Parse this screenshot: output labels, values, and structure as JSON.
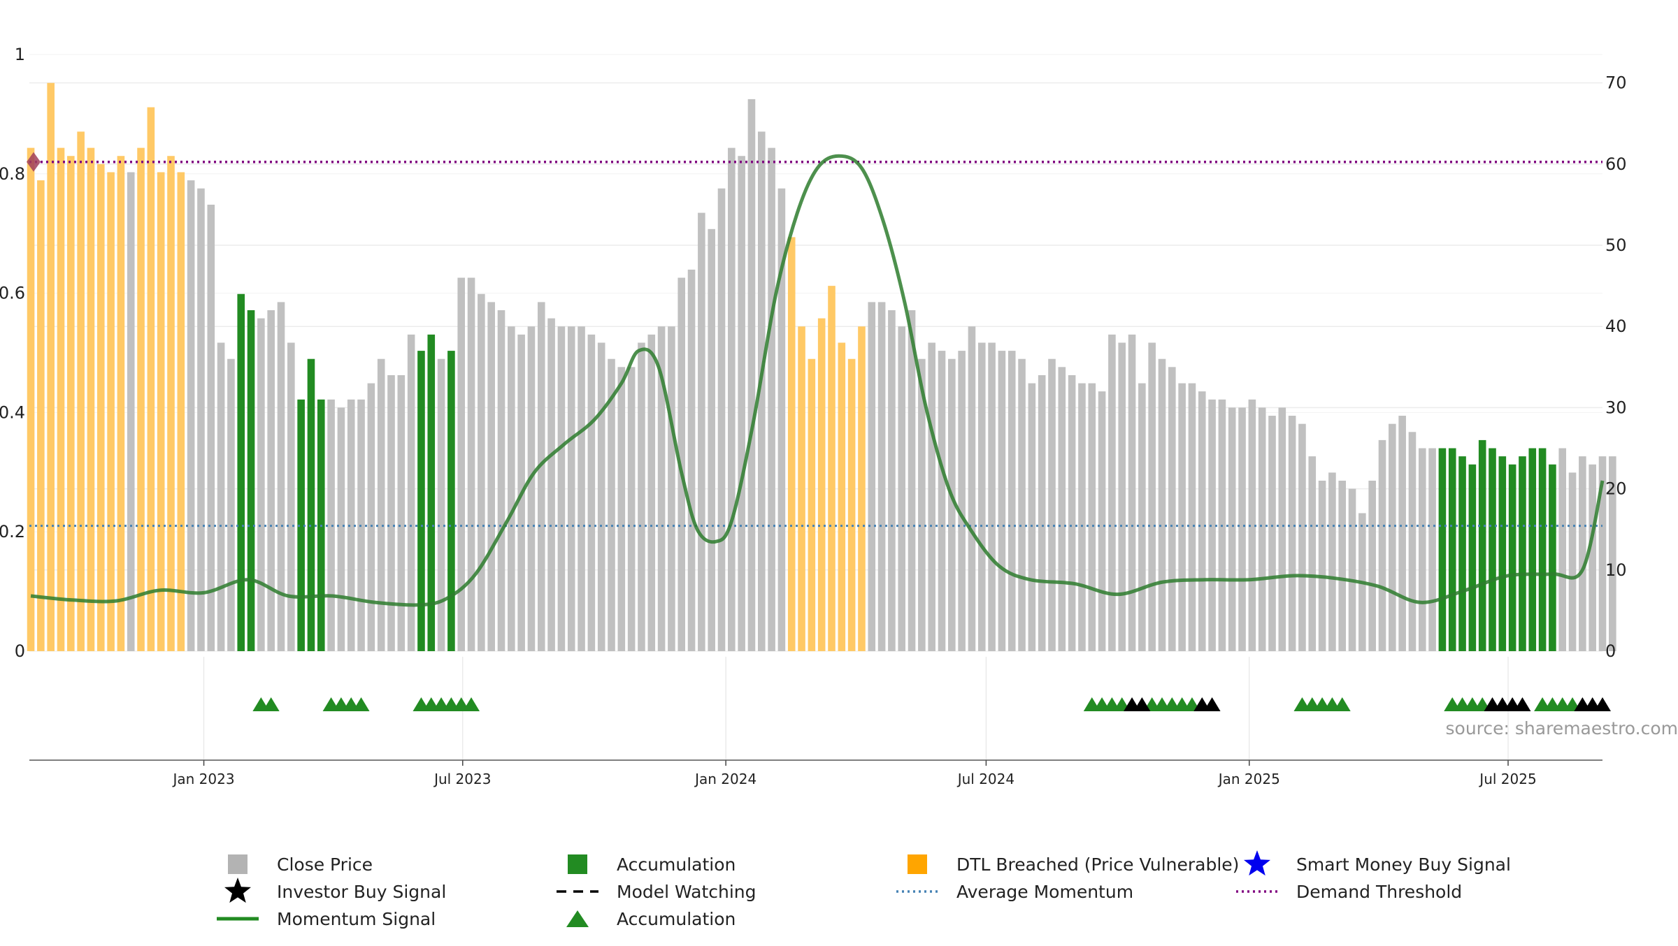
{
  "source": "source: sharemaestro.com",
  "colors": {
    "close": "#c0c0c0",
    "accumulation": "#228b22",
    "dtl": "#ffc966",
    "momentum": "#2e7d2e",
    "average": "#4682b4",
    "demand": "#800080",
    "investor": "#000000",
    "smart": "#0000ee",
    "marker": "#a0405a"
  },
  "legend": [
    {
      "key": "close",
      "icon": "square-icon",
      "label": "Close Price"
    },
    {
      "key": "accumulation",
      "icon": "square-icon",
      "label": "Accumulation"
    },
    {
      "key": "dtl",
      "icon": "square-icon",
      "label": "DTL Breached (Price Vulnerable)"
    },
    {
      "key": "smart",
      "icon": "star-icon",
      "label": "Smart Money Buy Signal"
    },
    {
      "key": "investor",
      "icon": "star-icon",
      "label": "Investor Buy Signal"
    },
    {
      "key": "model",
      "icon": "dashed-line-icon",
      "label": "Model Watching"
    },
    {
      "key": "average",
      "icon": "dotted-line-icon",
      "label": "Average Momentum"
    },
    {
      "key": "demand",
      "icon": "dotted-line-icon",
      "label": "Demand Threshold"
    },
    {
      "key": "momentum",
      "icon": "solid-line-icon",
      "label": "Momentum Signal"
    },
    {
      "key": "accum_marker",
      "icon": "triangle-icon",
      "label": "Accumulation"
    }
  ],
  "chart_data": {
    "type": "bar",
    "x_range": [
      "2022-09-01",
      "2025-09-05"
    ],
    "x_ticks": [
      {
        "date": "2023-01-01",
        "label": "Jan 2023"
      },
      {
        "date": "2023-07-01",
        "label": "Jul 2023"
      },
      {
        "date": "2024-01-01",
        "label": "Jan 2024"
      },
      {
        "date": "2024-07-01",
        "label": "Jul 2024"
      },
      {
        "date": "2025-01-01",
        "label": "Jan 2025"
      },
      {
        "date": "2025-07-01",
        "label": "Jul 2025"
      }
    ],
    "left_axis": {
      "ylim": [
        0,
        1
      ],
      "ticks": [
        0,
        0.2,
        0.4,
        0.6,
        0.8,
        1
      ],
      "labels": [
        "0",
        "0.2",
        "0.4",
        "0.6",
        "0.8",
        "1"
      ]
    },
    "right_axis": {
      "ylim": [
        0,
        73.5
      ],
      "ticks": [
        0,
        10,
        20,
        30,
        40,
        50,
        60,
        70
      ],
      "labels": [
        "0",
        "10",
        "20",
        "30",
        "40",
        "50",
        "60",
        "70"
      ]
    },
    "demand_threshold": 0.82,
    "average_momentum": 0.21,
    "start_marker": 0.82,
    "bars": {
      "start": "2022-09-02",
      "step_days": 7,
      "categories": "c: close price, a: accumulation, d: DTL breached",
      "values": [
        62,
        58,
        70,
        62,
        61,
        64,
        62,
        60,
        59,
        61,
        59,
        62,
        67,
        59,
        61,
        59,
        58,
        57,
        55,
        38,
        36,
        44,
        42,
        41,
        42,
        43,
        38,
        31,
        36,
        31,
        31,
        30,
        31,
        31,
        33,
        36,
        34,
        34,
        39,
        37,
        39,
        36,
        37,
        46,
        46,
        44,
        43,
        42,
        40,
        39,
        40,
        43,
        41,
        40,
        40,
        40,
        39,
        38,
        36,
        35,
        35,
        38,
        39,
        40,
        40,
        46,
        47,
        54,
        52,
        57,
        62,
        61,
        68,
        64,
        62,
        57,
        51,
        40,
        36,
        41,
        45,
        38,
        36,
        40,
        43,
        43,
        42,
        40,
        42,
        36,
        38,
        37,
        36,
        37,
        40,
        38,
        38,
        37,
        37,
        36,
        33,
        34,
        36,
        35,
        34,
        33,
        33,
        32,
        39,
        38,
        39,
        33,
        38,
        36,
        35,
        33,
        33,
        32,
        31,
        31,
        30,
        30,
        31,
        30,
        29,
        30,
        29,
        28,
        24,
        21,
        22,
        21,
        20,
        17,
        21,
        26,
        28,
        29,
        27,
        25,
        25,
        25,
        25,
        24,
        23,
        26,
        25,
        24,
        23,
        24,
        25,
        25,
        23,
        25,
        22,
        24,
        23,
        24,
        24
      ],
      "flags": "ddddddddddcdddddcccccaaccccaaacccccccccaacacccccccccccccccccccccccccccccccccddddddddcccccccccccccccccccccccccccccccccccccccccccccccccccccccccaaaaaaaaaaaaccccccccaaaaccccccccccccccaaaaaaaccccaaaaaaac"
    },
    "series": [
      {
        "name": "Momentum Signal",
        "axis": "right",
        "points": [
          [
            "2022-09-02",
            6.8
          ],
          [
            "2022-10-01",
            6.3
          ],
          [
            "2022-11-01",
            6.2
          ],
          [
            "2022-12-01",
            7.5
          ],
          [
            "2023-01-01",
            7.2
          ],
          [
            "2023-02-01",
            8.8
          ],
          [
            "2023-03-01",
            6.8
          ],
          [
            "2023-04-01",
            6.8
          ],
          [
            "2023-05-01",
            6.0
          ],
          [
            "2023-06-01",
            5.7
          ],
          [
            "2023-06-20",
            6.5
          ],
          [
            "2023-07-10",
            9.5
          ],
          [
            "2023-08-01",
            16.0
          ],
          [
            "2023-08-20",
            22.0
          ],
          [
            "2023-09-10",
            25.5
          ],
          [
            "2023-10-01",
            28.5
          ],
          [
            "2023-10-20",
            33.0
          ],
          [
            "2023-11-01",
            37.0
          ],
          [
            "2023-11-15",
            35.0
          ],
          [
            "2023-12-01",
            22.0
          ],
          [
            "2023-12-12",
            15.0
          ],
          [
            "2023-12-25",
            13.5
          ],
          [
            "2024-01-05",
            16.0
          ],
          [
            "2024-01-20",
            28.0
          ],
          [
            "2024-02-05",
            44.0
          ],
          [
            "2024-02-20",
            54.0
          ],
          [
            "2024-03-05",
            59.5
          ],
          [
            "2024-03-20",
            61.0
          ],
          [
            "2024-04-05",
            59.5
          ],
          [
            "2024-04-20",
            53.0
          ],
          [
            "2024-05-05",
            43.0
          ],
          [
            "2024-05-20",
            30.0
          ],
          [
            "2024-06-05",
            20.0
          ],
          [
            "2024-06-20",
            15.0
          ],
          [
            "2024-07-10",
            10.5
          ],
          [
            "2024-08-01",
            8.8
          ],
          [
            "2024-09-01",
            8.3
          ],
          [
            "2024-10-01",
            7.0
          ],
          [
            "2024-11-01",
            8.5
          ],
          [
            "2024-12-01",
            8.8
          ],
          [
            "2025-01-01",
            8.8
          ],
          [
            "2025-02-01",
            9.3
          ],
          [
            "2025-03-01",
            9.0
          ],
          [
            "2025-04-01",
            8.0
          ],
          [
            "2025-05-01",
            6.0
          ],
          [
            "2025-06-01",
            7.5
          ],
          [
            "2025-07-01",
            9.3
          ],
          [
            "2025-08-01",
            9.5
          ],
          [
            "2025-08-22",
            10.0
          ],
          [
            "2025-09-05",
            21.0
          ]
        ]
      }
    ],
    "accumulation_markers": [
      "2023-02-10",
      "2023-02-17",
      "2023-03-31",
      "2023-04-07",
      "2023-04-14",
      "2023-04-21",
      "2023-06-02",
      "2023-06-09",
      "2023-06-16",
      "2023-06-23",
      "2023-06-30",
      "2023-07-07",
      "2024-09-13",
      "2024-09-20",
      "2024-09-27",
      "2024-10-04",
      "2024-10-25",
      "2024-11-01",
      "2024-11-08",
      "2024-11-15",
      "2024-11-22",
      "2025-02-07",
      "2025-02-14",
      "2025-02-21",
      "2025-02-28",
      "2025-03-07",
      "2025-05-23",
      "2025-05-30",
      "2025-06-06",
      "2025-06-13",
      "2025-07-25",
      "2025-08-01",
      "2025-08-08",
      "2025-08-15"
    ],
    "model_markers": [
      "2024-10-11",
      "2024-10-18",
      "2024-11-29",
      "2024-12-06",
      "2025-06-20",
      "2025-06-27",
      "2025-07-04",
      "2025-07-11",
      "2025-08-22",
      "2025-08-29",
      "2025-09-05"
    ]
  }
}
